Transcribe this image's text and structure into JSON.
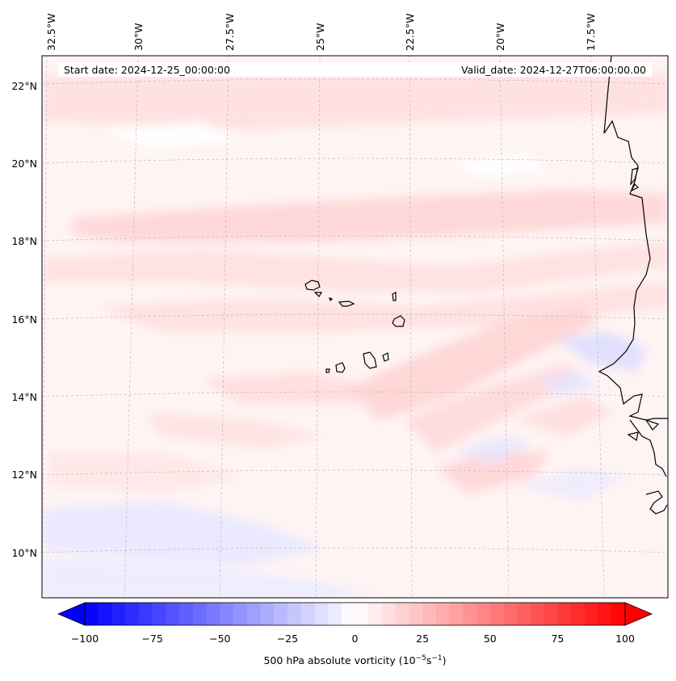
{
  "header": {
    "start_date": "Start date: 2024-12-25_00:00:00",
    "valid_date": "Valid_date: 2024-12-27T06:00:00.00"
  },
  "lon_labels": [
    "32.5°W",
    "30°W",
    "27.5°W",
    "25°W",
    "22.5°W",
    "20°W",
    "17.5°W"
  ],
  "lat_labels": [
    "22°N",
    "20°N",
    "18°N",
    "16°N",
    "14°N",
    "12°N",
    "10°N"
  ],
  "colorbar": {
    "label_main": "500 hPa absolute vorticity (10",
    "label_exp1": "−5",
    "label_mid": "s",
    "label_exp2": "−1",
    "label_end": ")",
    "ticks": [
      "−100",
      "−75",
      "−50",
      "−25",
      "0",
      "25",
      "50",
      "75",
      "100"
    ],
    "min": -100,
    "max": 100,
    "n_levels": 40,
    "min_color": "#0000ff",
    "mid_color": "#ffffff",
    "max_color": "#ff0000"
  },
  "colors": {
    "background_tint": "#fff4f4",
    "positive_tint": "#ffd8d8",
    "negative_tint": "#e6e6ff",
    "coastline": "#000000",
    "gridline": "#b0b0b0"
  }
}
